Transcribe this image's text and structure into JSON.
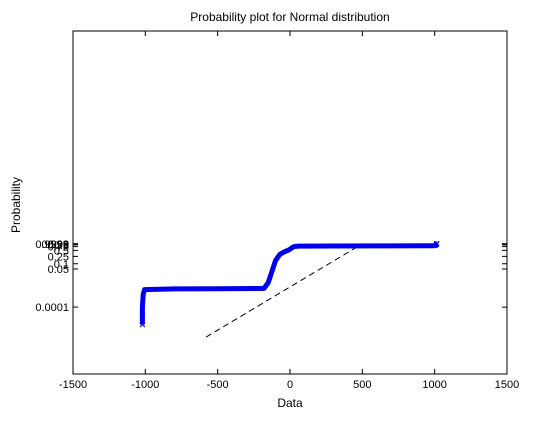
{
  "chart_data": {
    "type": "scatter",
    "title": "Probability plot for Normal distribution",
    "xlabel": "Data",
    "ylabel": "Probability",
    "xlim": [
      -1500,
      1500
    ],
    "x_ticks": [
      -1500,
      -1000,
      -500,
      0,
      500,
      1000,
      1500
    ],
    "y_scale": "normal-probability",
    "y_ticks": [
      {
        "p": 1e-06,
        "label": "0.0001"
      },
      {
        "p": 0.0005,
        "label": "0.05"
      },
      {
        "p": 0.001,
        "label": "0.1"
      },
      {
        "p": 0.0025,
        "label": "0.25"
      },
      {
        "p": 0.005,
        "label": "0.5"
      },
      {
        "p": 0.0075,
        "label": "0.75"
      },
      {
        "p": 0.009,
        "label": "0.9"
      },
      {
        "p": 0.0095,
        "label": "0.95"
      },
      {
        "p": 0.0099,
        "label": "0.99"
      },
      {
        "p": 0.00999,
        "label": "0.999"
      },
      {
        "p": 0.009999,
        "label": "0.9999"
      }
    ],
    "grid": false,
    "colors": {
      "data": "#0000ee",
      "reference_line": "#000000"
    },
    "reference_line": {
      "style": "dashed",
      "points": [
        [
          -580,
          1.8e-09
        ],
        [
          500,
          0.01
        ]
      ]
    },
    "series": [
      {
        "marker": "x",
        "points": [
          [
            -1020,
            2.9e-08
          ],
          [
            -1020,
            2e-07
          ],
          [
            -1020,
            1e-06
          ],
          [
            -1015,
            1e-05
          ],
          [
            -1005,
            2.25e-05
          ],
          [
            -800,
            2.5e-05
          ],
          [
            -500,
            2.6e-05
          ],
          [
            -180,
            2.7e-05
          ],
          [
            -150,
            7e-05
          ],
          [
            -100,
            0.0015
          ],
          [
            -70,
            0.0032
          ],
          [
            -40,
            0.0042
          ],
          [
            -20,
            0.0048
          ],
          [
            0,
            0.0056
          ],
          [
            15,
            0.0068
          ],
          [
            30,
            0.0076
          ],
          [
            60,
            0.0079
          ],
          [
            300,
            0.008
          ],
          [
            700,
            0.0081
          ],
          [
            990,
            0.0082
          ],
          [
            1010,
            0.0084
          ],
          [
            1010,
            0.0099
          ],
          [
            1010,
            0.00999
          ],
          [
            1010,
            0.00999912
          ],
          [
            1012,
            0.00999975
          ],
          [
            1015,
            0.0099999
          ]
        ]
      }
    ]
  }
}
